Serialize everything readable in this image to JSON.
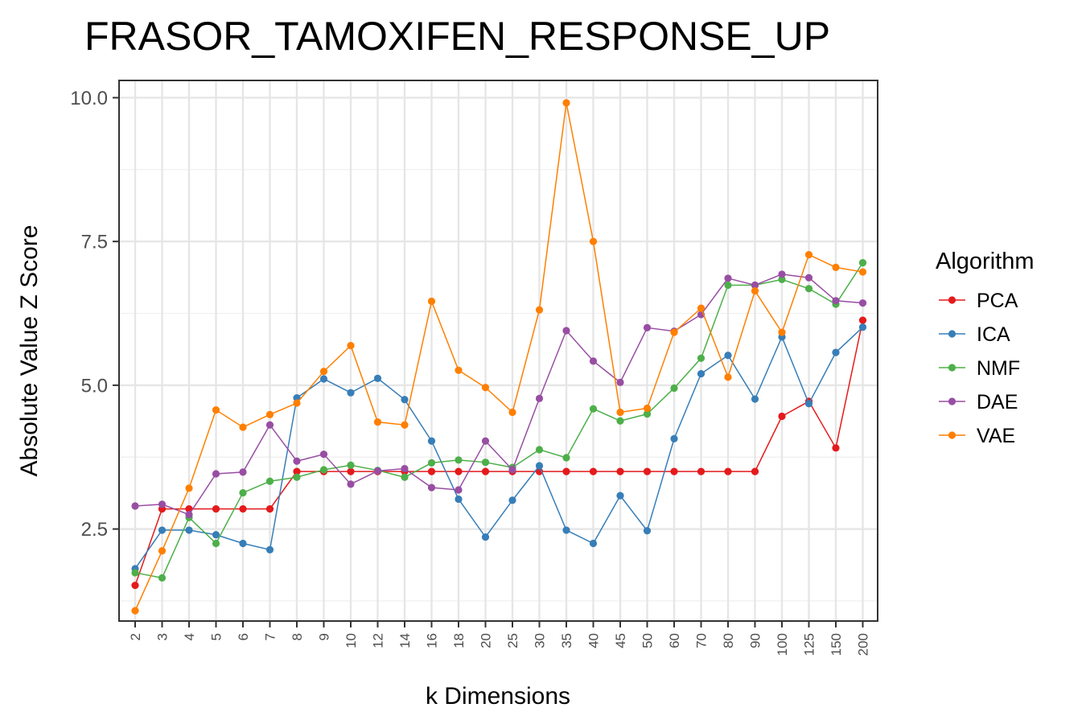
{
  "chart_data": {
    "type": "line",
    "title": "FRASOR_TAMOXIFEN_RESPONSE_UP",
    "xlabel": "k Dimensions",
    "ylabel": "Absolute Value Z Score",
    "categories": [
      "2",
      "3",
      "4",
      "5",
      "6",
      "7",
      "8",
      "9",
      "10",
      "12",
      "14",
      "16",
      "18",
      "20",
      "25",
      "30",
      "35",
      "40",
      "45",
      "50",
      "60",
      "70",
      "80",
      "90",
      "100",
      "125",
      "150",
      "200"
    ],
    "y_ticks": [
      "2.5",
      "5.0",
      "7.5",
      "10.0"
    ],
    "y_tick_values": [
      2.5,
      5.0,
      7.5,
      10.0
    ],
    "ylim": [
      0.9,
      10.3
    ],
    "grid": true,
    "legend": {
      "title": "Algorithm",
      "position": "right"
    },
    "series": [
      {
        "name": "PCA",
        "color": "#e41a1c",
        "values": [
          1.52,
          2.85,
          2.85,
          2.85,
          2.85,
          2.85,
          3.5,
          3.5,
          3.5,
          3.5,
          3.5,
          3.5,
          3.5,
          3.5,
          3.5,
          3.5,
          3.5,
          3.5,
          3.5,
          3.5,
          3.5,
          3.5,
          3.5,
          3.5,
          4.46,
          4.72,
          3.91,
          6.13
        ]
      },
      {
        "name": "ICA",
        "color": "#377eb8",
        "values": [
          1.81,
          2.48,
          2.48,
          2.4,
          2.25,
          2.14,
          4.78,
          5.11,
          4.87,
          5.12,
          4.75,
          4.03,
          3.02,
          2.36,
          3.0,
          3.6,
          2.48,
          2.25,
          3.08,
          2.47,
          4.07,
          5.2,
          5.52,
          4.76,
          5.84,
          4.68,
          5.57,
          6.01
        ]
      },
      {
        "name": "NMF",
        "color": "#4daf4a",
        "values": [
          1.74,
          1.65,
          2.7,
          2.25,
          3.13,
          3.33,
          3.4,
          3.53,
          3.61,
          3.52,
          3.4,
          3.65,
          3.7,
          3.66,
          3.57,
          3.88,
          3.74,
          4.59,
          4.38,
          4.5,
          4.95,
          5.47,
          6.74,
          6.74,
          6.84,
          6.68,
          6.41,
          7.13
        ]
      },
      {
        "name": "DAE",
        "color": "#984ea3",
        "values": [
          2.9,
          2.93,
          2.75,
          3.46,
          3.49,
          4.31,
          3.68,
          3.8,
          3.28,
          3.51,
          3.55,
          3.22,
          3.18,
          4.03,
          3.53,
          4.77,
          5.95,
          5.42,
          5.05,
          6.0,
          5.94,
          6.23,
          6.86,
          6.74,
          6.93,
          6.87,
          6.47,
          6.43
        ]
      },
      {
        "name": "VAE",
        "color": "#ff7f00",
        "values": [
          1.08,
          2.12,
          3.21,
          4.57,
          4.27,
          4.49,
          4.69,
          5.24,
          5.69,
          4.36,
          4.31,
          6.46,
          5.26,
          4.96,
          4.53,
          6.31,
          9.91,
          7.5,
          4.53,
          4.6,
          5.92,
          6.34,
          5.14,
          6.64,
          5.92,
          7.27,
          7.05,
          6.97
        ]
      }
    ]
  }
}
